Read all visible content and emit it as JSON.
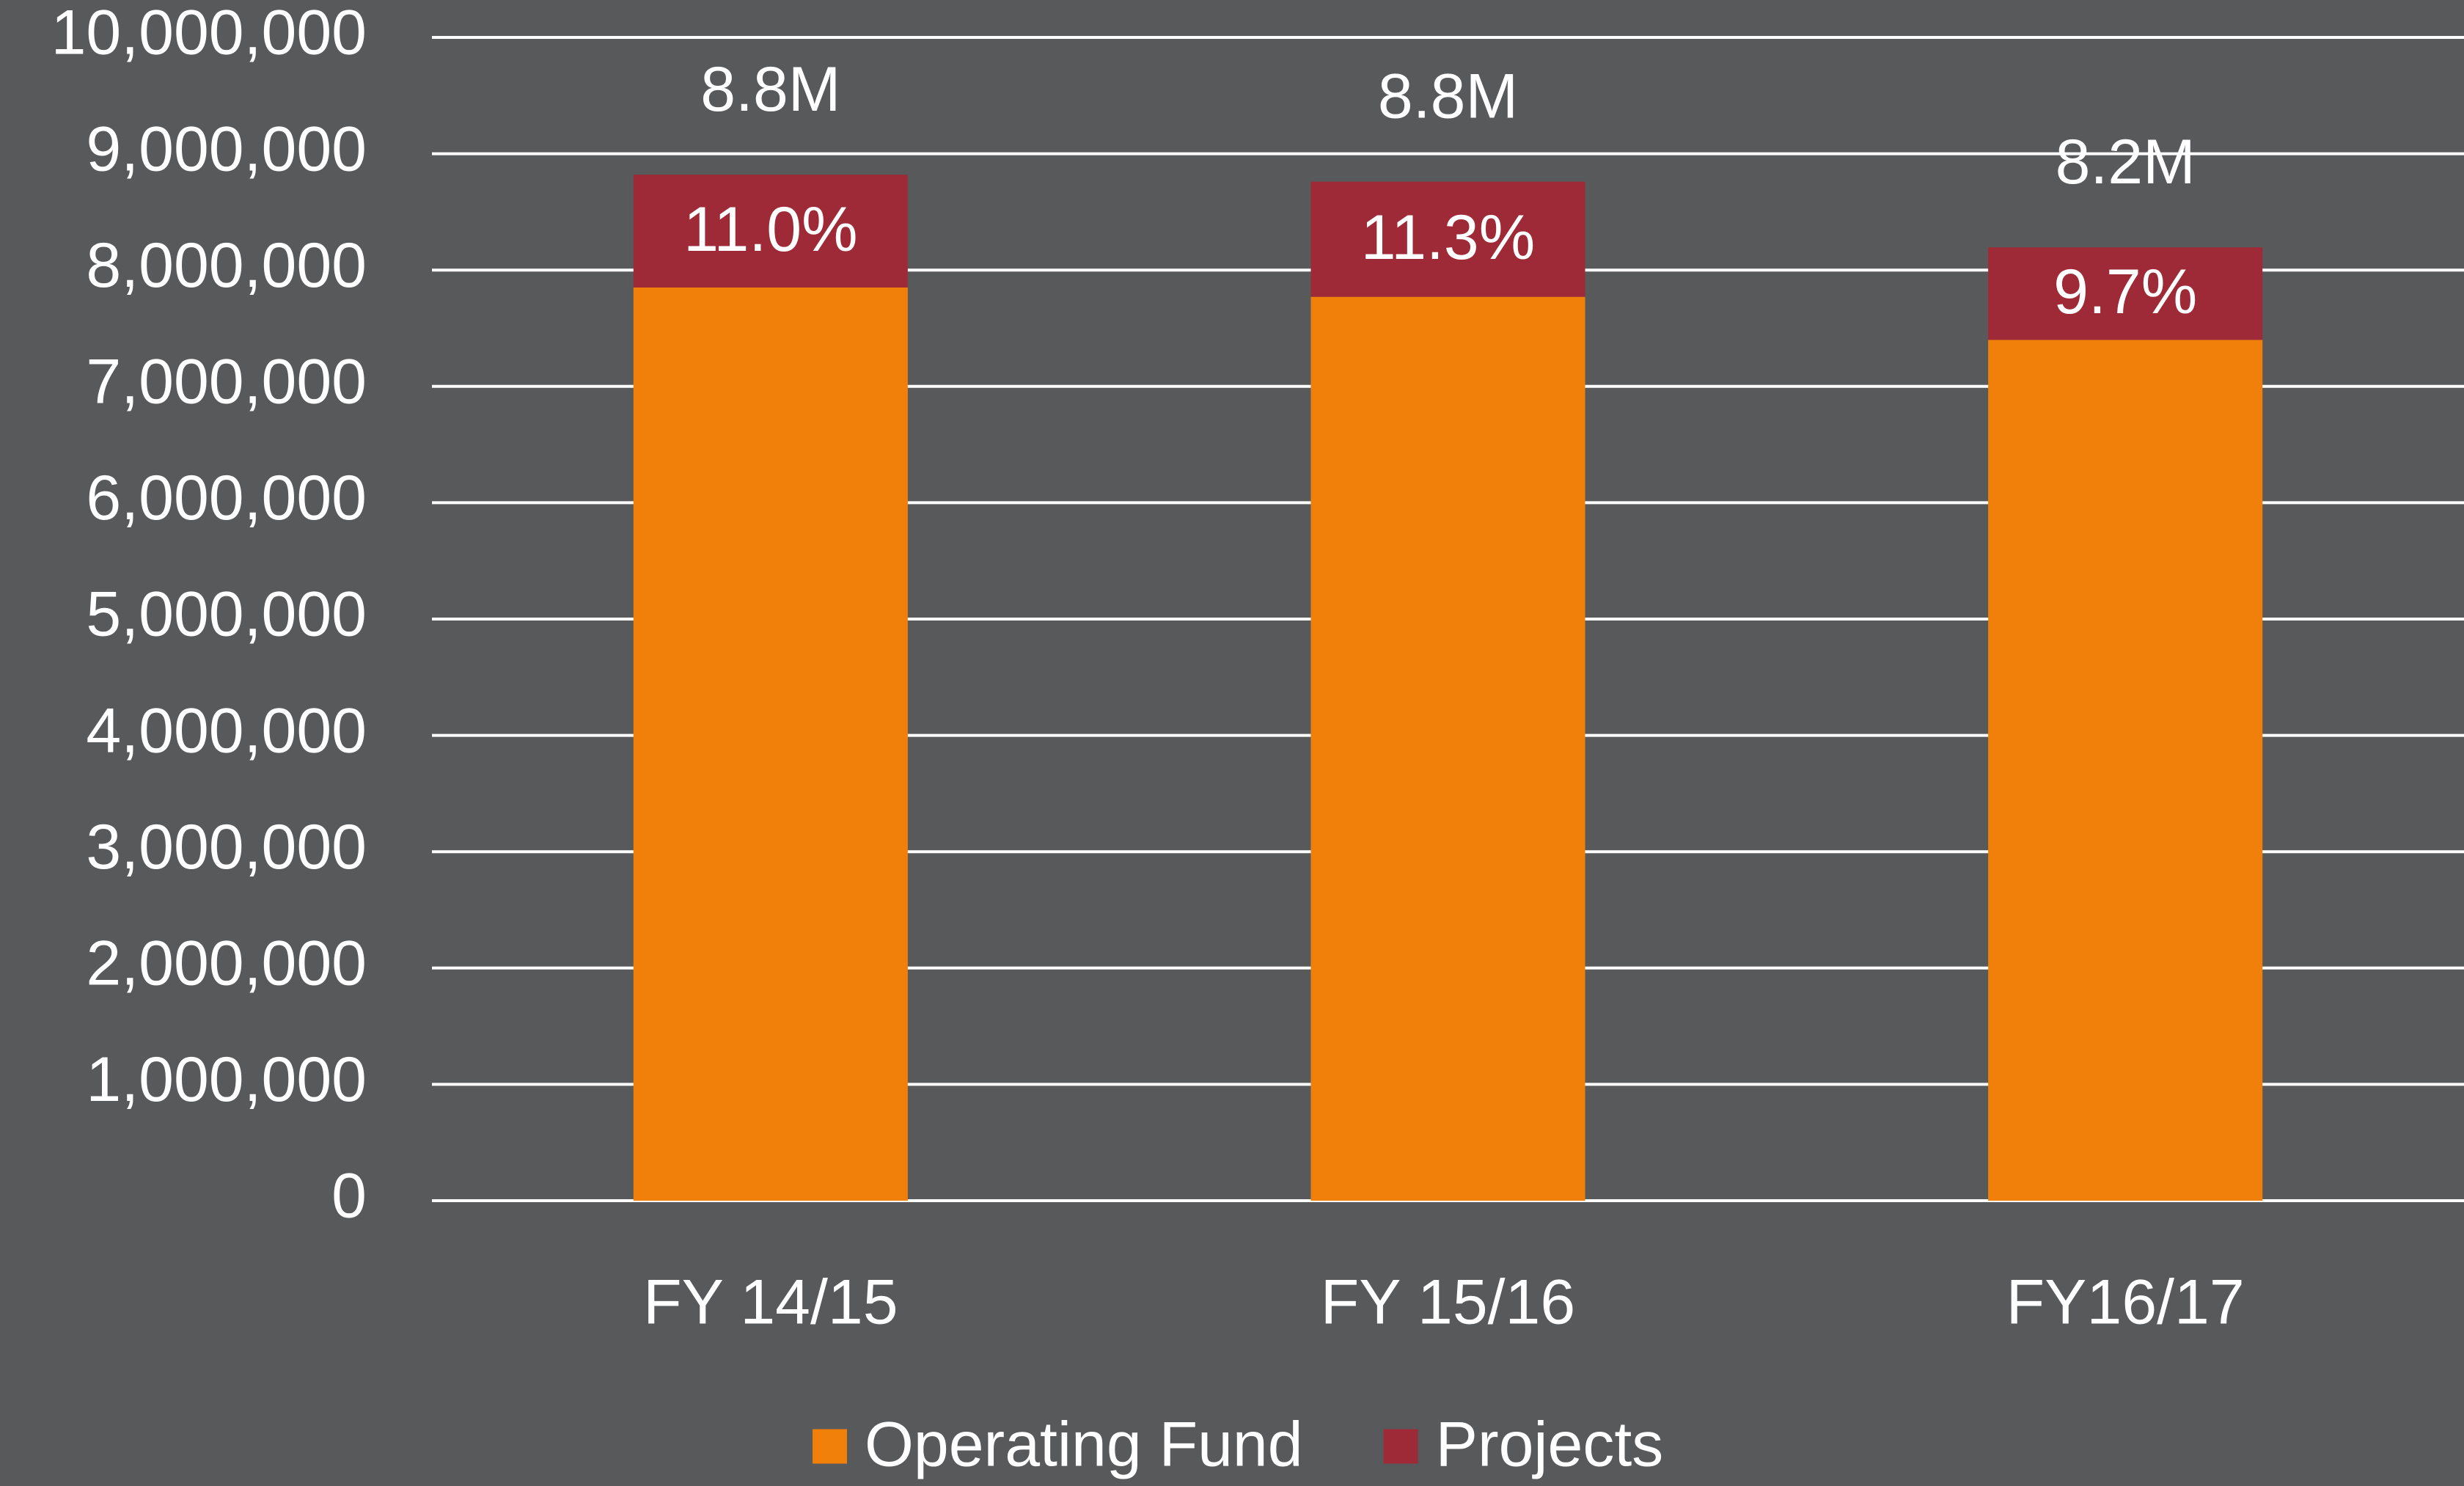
{
  "chart_data": {
    "type": "stacked_bar",
    "categories": [
      "FY 14/15",
      "FY 15/16",
      "FY16/17"
    ],
    "series": [
      {
        "name": "Operating Fund",
        "color": "#f0800a",
        "values": [
          7850000,
          7770000,
          7400000
        ]
      },
      {
        "name": "Projects",
        "color": "#9e2a37",
        "values": [
          970000,
          990000,
          795000
        ]
      }
    ],
    "annotations": {
      "totals": [
        "8.8M",
        "8.8M",
        "8.2M"
      ],
      "shares": [
        "11.0%",
        "11.3%",
        "9.7%"
      ]
    },
    "ylim": [
      0,
      10000000
    ],
    "yticks": [
      0,
      {
        "value": 1000000,
        "label": "1,000,000"
      },
      {
        "value": 2000000,
        "label": "2,000,000"
      },
      {
        "value": 3000000,
        "label": "3,000,000"
      },
      {
        "value": 4000000,
        "label": "4,000,000"
      },
      {
        "value": 5000000,
        "label": "5,000,000"
      },
      {
        "value": 6000000,
        "label": "6,000,000"
      },
      {
        "value": 7000000,
        "label": "7,000,000"
      },
      {
        "value": 8000000,
        "label": "8,000,000"
      },
      {
        "value": 9000000,
        "label": "9,000,000"
      },
      {
        "value": 10000000,
        "label": "10,000,000"
      }
    ],
    "grid": true,
    "legend": "bottom"
  }
}
